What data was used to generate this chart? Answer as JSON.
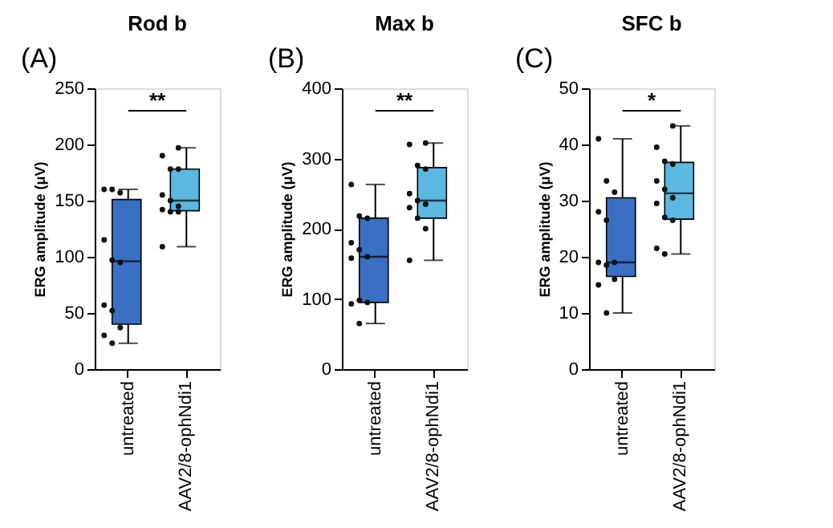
{
  "chart_data": [
    {
      "type": "box",
      "title": "Rod b",
      "ylabel": "ERG amplitude (μV)",
      "categories": [
        "untreated",
        "AAV2/8-ophNdi1"
      ],
      "ylim": [
        0,
        250
      ],
      "yticks": [
        0,
        50,
        100,
        150,
        200,
        250
      ],
      "grid": false,
      "legend": false,
      "annotations": [
        "(A)",
        "**"
      ],
      "series": [
        {
          "type": "box",
          "colors": [
            "#3a6fc4",
            "#5bb8e0"
          ],
          "boxes": [
            {
              "low": 23,
              "q1": 40,
              "median": 96,
              "q3": 151,
              "high": 160
            },
            {
              "low": 109,
              "q1": 141,
              "median": 150,
              "q3": 178,
              "high": 197
            }
          ]
        },
        {
          "type": "scatter",
          "color": "#111111",
          "x": [
            "untreated",
            "untreated",
            "untreated",
            "untreated",
            "untreated",
            "untreated",
            "untreated",
            "untreated",
            "untreated",
            "untreated",
            "untreated",
            "AAV2/8-ophNdi1",
            "AAV2/8-ophNdi1",
            "AAV2/8-ophNdi1",
            "AAV2/8-ophNdi1",
            "AAV2/8-ophNdi1",
            "AAV2/8-ophNdi1",
            "AAV2/8-ophNdi1",
            "AAV2/8-ophNdi1",
            "AAV2/8-ophNdi1",
            "AAV2/8-ophNdi1",
            "AAV2/8-ophNdi1"
          ],
          "values": [
            160,
            160,
            157,
            115,
            97,
            95,
            57,
            52,
            37,
            30,
            23,
            197,
            190,
            178,
            178,
            155,
            150,
            145,
            142,
            140,
            140,
            109
          ]
        }
      ]
    },
    {
      "type": "box",
      "title": "Max b",
      "ylabel": "ERG amplitude (μV)",
      "categories": [
        "untreated",
        "AAV2/8-ophNdi1"
      ],
      "ylim": [
        0,
        400
      ],
      "yticks": [
        0,
        100,
        200,
        300,
        400
      ],
      "grid": false,
      "legend": false,
      "annotations": [
        "(B)",
        "**"
      ],
      "series": [
        {
          "type": "box",
          "colors": [
            "#3a6fc4",
            "#5bb8e0"
          ],
          "boxes": [
            {
              "low": 65,
              "q1": 95,
              "median": 160,
              "q3": 215,
              "high": 263
            },
            {
              "low": 155,
              "q1": 215,
              "median": 240,
              "q3": 287,
              "high": 322
            }
          ]
        },
        {
          "type": "scatter",
          "color": "#111111",
          "x": [
            "untreated",
            "untreated",
            "untreated",
            "untreated",
            "untreated",
            "untreated",
            "untreated",
            "untreated",
            "untreated",
            "untreated",
            "untreated",
            "AAV2/8-ophNdi1",
            "AAV2/8-ophNdi1",
            "AAV2/8-ophNdi1",
            "AAV2/8-ophNdi1",
            "AAV2/8-ophNdi1",
            "AAV2/8-ophNdi1",
            "AAV2/8-ophNdi1",
            "AAV2/8-ophNdi1",
            "AAV2/8-ophNdi1",
            "AAV2/8-ophNdi1",
            "AAV2/8-ophNdi1"
          ],
          "values": [
            263,
            218,
            215,
            180,
            170,
            160,
            158,
            98,
            95,
            93,
            65,
            322,
            320,
            290,
            285,
            250,
            240,
            235,
            230,
            215,
            200,
            155
          ]
        }
      ]
    },
    {
      "type": "box",
      "title": "SFC b",
      "ylabel": "ERG amplitude (μV)",
      "categories": [
        "untreated",
        "AAV2/8-ophNdi1"
      ],
      "ylim": [
        0,
        50
      ],
      "yticks": [
        0,
        10,
        20,
        30,
        40,
        50
      ],
      "grid": false,
      "legend": false,
      "annotations": [
        "(C)",
        "*"
      ],
      "series": [
        {
          "type": "box",
          "colors": [
            "#3a6fc4",
            "#5bb8e0"
          ],
          "boxes": [
            {
              "low": 10,
              "q1": 16.5,
              "median": 19,
              "q3": 30.5,
              "high": 41
            },
            {
              "low": 20.5,
              "q1": 26.7,
              "median": 31.3,
              "q3": 36.8,
              "high": 43.3
            }
          ]
        },
        {
          "type": "scatter",
          "color": "#111111",
          "x": [
            "untreated",
            "untreated",
            "untreated",
            "untreated",
            "untreated",
            "untreated",
            "untreated",
            "untreated",
            "untreated",
            "untreated",
            "untreated",
            "AAV2/8-ophNdi1",
            "AAV2/8-ophNdi1",
            "AAV2/8-ophNdi1",
            "AAV2/8-ophNdi1",
            "AAV2/8-ophNdi1",
            "AAV2/8-ophNdi1",
            "AAV2/8-ophNdi1",
            "AAV2/8-ophNdi1",
            "AAV2/8-ophNdi1",
            "AAV2/8-ophNdi1",
            "AAV2/8-ophNdi1",
            "AAV2/8-ophNdi1"
          ],
          "values": [
            41,
            33.5,
            31.5,
            28,
            26.5,
            19,
            19,
            18.5,
            16,
            15,
            10,
            43.3,
            39.5,
            37,
            36.5,
            33.5,
            32,
            30.5,
            29.5,
            27,
            26.5,
            21.5,
            20.5
          ]
        }
      ]
    }
  ]
}
